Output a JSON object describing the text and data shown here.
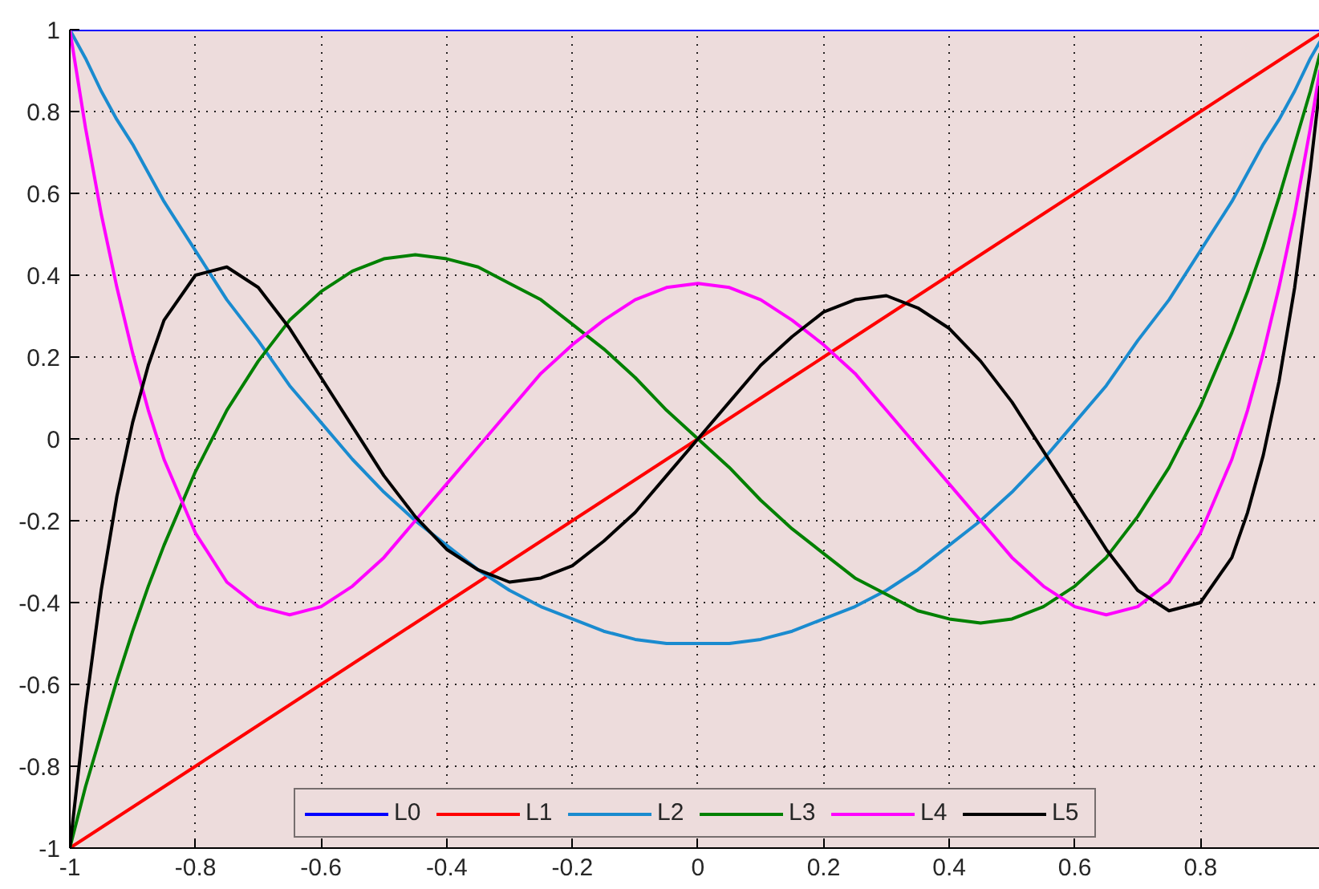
{
  "chart_data": {
    "type": "line",
    "xlim": [
      -1,
      0.99
    ],
    "ylim": [
      -1,
      1
    ],
    "xticks": [
      -1,
      -0.8,
      -0.6,
      -0.4,
      -0.2,
      0,
      0.2,
      0.4,
      0.6,
      0.8
    ],
    "yticks": [
      -1,
      -0.8,
      -0.6,
      -0.4,
      -0.2,
      0,
      0.2,
      0.4,
      0.6,
      0.8,
      1
    ],
    "grid": true,
    "legend": "bottom",
    "x": [
      -1,
      -0.975,
      -0.95,
      -0.925,
      -0.9,
      -0.875,
      -0.85,
      -0.8,
      -0.75,
      -0.7,
      -0.65,
      -0.6,
      -0.55,
      -0.5,
      -0.45,
      -0.4,
      -0.35,
      -0.3,
      -0.25,
      -0.2,
      -0.15,
      -0.1,
      -0.05,
      0,
      0.05,
      0.1,
      0.15,
      0.2,
      0.25,
      0.3,
      0.35,
      0.4,
      0.45,
      0.5,
      0.55,
      0.6,
      0.65,
      0.7,
      0.75,
      0.8,
      0.85,
      0.875,
      0.9,
      0.925,
      0.95,
      0.975,
      0.99
    ],
    "series": [
      {
        "name": "L0",
        "color": "#0000ff",
        "values": [
          1,
          1,
          1,
          1,
          1,
          1,
          1,
          1,
          1,
          1,
          1,
          1,
          1,
          1,
          1,
          1,
          1,
          1,
          1,
          1,
          1,
          1,
          1,
          1,
          1,
          1,
          1,
          1,
          1,
          1,
          1,
          1,
          1,
          1,
          1,
          1,
          1,
          1,
          1,
          1,
          1,
          1,
          1,
          1,
          1,
          1,
          1
        ]
      },
      {
        "name": "L1",
        "color": "#ff0000",
        "values": [
          -1,
          -0.975,
          -0.95,
          -0.925,
          -0.9,
          -0.875,
          -0.85,
          -0.8,
          -0.75,
          -0.7,
          -0.65,
          -0.6,
          -0.55,
          -0.5,
          -0.45,
          -0.4,
          -0.35,
          -0.3,
          -0.25,
          -0.2,
          -0.15,
          -0.1,
          -0.05,
          0,
          0.05,
          0.1,
          0.15,
          0.2,
          0.25,
          0.3,
          0.35,
          0.4,
          0.45,
          0.5,
          0.55,
          0.6,
          0.65,
          0.7,
          0.75,
          0.8,
          0.85,
          0.875,
          0.9,
          0.925,
          0.95,
          0.975,
          0.99
        ]
      },
      {
        "name": "L2",
        "color": "#1a8bcf",
        "values": [
          1,
          0.93,
          0.85,
          0.78,
          0.72,
          0.65,
          0.58,
          0.46,
          0.34,
          0.24,
          0.13,
          0.04,
          -0.05,
          -0.13,
          -0.2,
          -0.26,
          -0.32,
          -0.37,
          -0.41,
          -0.44,
          -0.47,
          -0.49,
          -0.5,
          -0.5,
          -0.5,
          -0.49,
          -0.47,
          -0.44,
          -0.41,
          -0.37,
          -0.32,
          -0.26,
          -0.2,
          -0.13,
          -0.05,
          0.04,
          0.13,
          0.24,
          0.34,
          0.46,
          0.58,
          0.65,
          0.72,
          0.78,
          0.85,
          0.93,
          0.97
        ]
      },
      {
        "name": "L3",
        "color": "#008000",
        "values": [
          -1,
          -0.85,
          -0.72,
          -0.59,
          -0.47,
          -0.36,
          -0.26,
          -0.08,
          0.07,
          0.19,
          0.29,
          0.36,
          0.41,
          0.44,
          0.45,
          0.44,
          0.42,
          0.38,
          0.34,
          0.28,
          0.22,
          0.15,
          0.07,
          0,
          -0.07,
          -0.15,
          -0.22,
          -0.28,
          -0.34,
          -0.38,
          -0.42,
          -0.44,
          -0.45,
          -0.44,
          -0.41,
          -0.36,
          -0.29,
          -0.19,
          -0.07,
          0.08,
          0.26,
          0.36,
          0.47,
          0.59,
          0.72,
          0.85,
          0.94
        ]
      },
      {
        "name": "L4",
        "color": "#ff00ff",
        "values": [
          1,
          0.76,
          0.55,
          0.37,
          0.21,
          0.07,
          -0.05,
          -0.23,
          -0.35,
          -0.41,
          -0.43,
          -0.41,
          -0.36,
          -0.29,
          -0.2,
          -0.11,
          -0.02,
          0.07,
          0.16,
          0.23,
          0.29,
          0.34,
          0.37,
          0.38,
          0.37,
          0.34,
          0.29,
          0.23,
          0.16,
          0.07,
          -0.02,
          -0.11,
          -0.2,
          -0.29,
          -0.36,
          -0.41,
          -0.43,
          -0.41,
          -0.35,
          -0.23,
          -0.05,
          0.07,
          0.21,
          0.37,
          0.55,
          0.76,
          0.9
        ]
      },
      {
        "name": "L5",
        "color": "#000000",
        "values": [
          -1,
          -0.66,
          -0.37,
          -0.14,
          0.04,
          0.18,
          0.29,
          0.4,
          0.42,
          0.37,
          0.27,
          0.15,
          0.03,
          -0.09,
          -0.19,
          -0.27,
          -0.32,
          -0.35,
          -0.34,
          -0.31,
          -0.25,
          -0.18,
          -0.09,
          0,
          0.09,
          0.18,
          0.25,
          0.31,
          0.34,
          0.35,
          0.32,
          0.27,
          0.19,
          0.09,
          -0.03,
          -0.15,
          -0.27,
          -0.37,
          -0.42,
          -0.4,
          -0.29,
          -0.18,
          -0.04,
          0.14,
          0.37,
          0.66,
          0.86
        ]
      }
    ]
  }
}
